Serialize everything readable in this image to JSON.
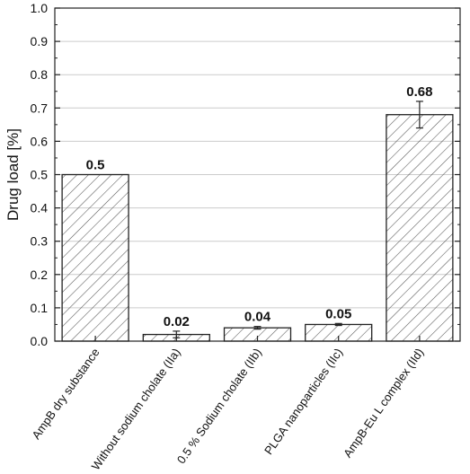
{
  "chart_data": {
    "type": "bar",
    "categories": [
      "AmpB dry substance",
      "Without sodium cholate (IIa)",
      "0.5 % Sodium cholate (IIb)",
      "PLGA nanoparticles (IIc)",
      "AmpB-Eu L complex (IId)"
    ],
    "values": [
      0.5,
      0.02,
      0.04,
      0.05,
      0.68
    ],
    "errors": [
      0,
      0.01,
      0.004,
      0.003,
      0.04
    ],
    "value_labels": [
      "0.5",
      "0.02",
      "0.04",
      "0.05",
      "0.68"
    ],
    "title": "",
    "xlabel": "",
    "ylabel": "Drug load [%]",
    "ylim": [
      0,
      1.0
    ],
    "yticks": [
      0.0,
      0.1,
      0.2,
      0.3,
      0.4,
      0.5,
      0.6,
      0.7,
      0.8,
      0.9,
      1.0
    ],
    "ytick_labels": [
      "0.0",
      "0.1",
      "0.2",
      "0.3",
      "0.4",
      "0.5",
      "0.6",
      "0.7",
      "0.8",
      "0.9",
      "1.0"
    ],
    "grid": "horizontal",
    "legend": "none",
    "bar_fill": "hatched",
    "bar_color": "#222222",
    "grid_color": "#cccccc"
  }
}
